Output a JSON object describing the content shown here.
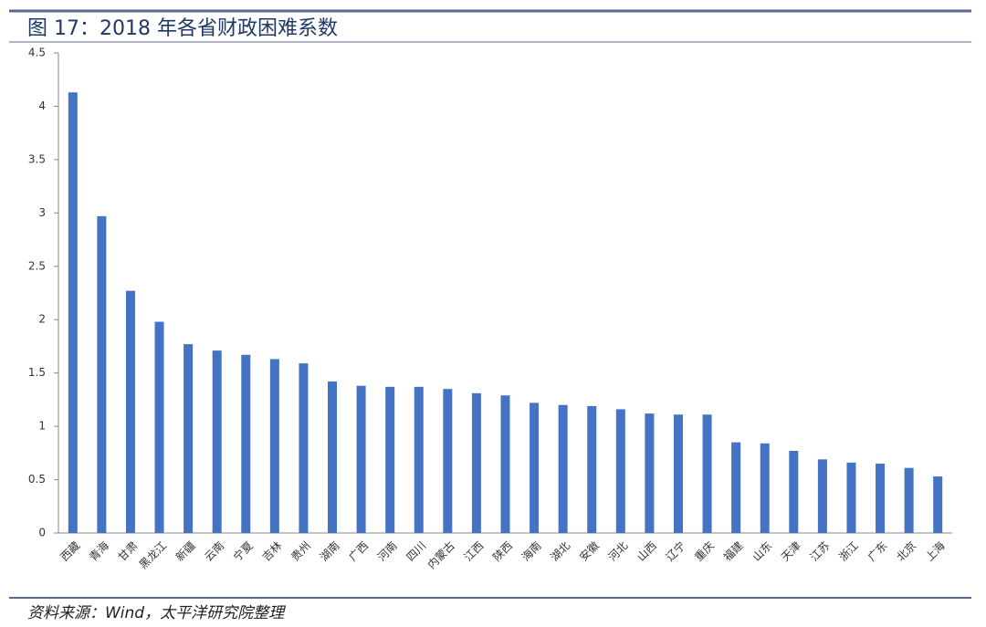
{
  "chart_data": {
    "type": "bar",
    "title": "图 17：2018 年各省财政困难系数",
    "source": "资料来源：Wind，太平洋研究院整理",
    "categories": [
      "西藏",
      "青海",
      "甘肃",
      "黑龙江",
      "新疆",
      "云南",
      "宁夏",
      "吉林",
      "贵州",
      "湖南",
      "广西",
      "河南",
      "四川",
      "内蒙古",
      "江西",
      "陕西",
      "海南",
      "湖北",
      "安徽",
      "河北",
      "山西",
      "辽宁",
      "重庆",
      "福建",
      "山东",
      "天津",
      "江苏",
      "浙江",
      "广东",
      "北京",
      "上海"
    ],
    "values": [
      4.13,
      2.97,
      2.27,
      1.98,
      1.77,
      1.71,
      1.67,
      1.63,
      1.59,
      1.42,
      1.38,
      1.37,
      1.37,
      1.35,
      1.31,
      1.29,
      1.22,
      1.2,
      1.19,
      1.16,
      1.12,
      1.11,
      1.11,
      0.85,
      0.84,
      0.77,
      0.69,
      0.66,
      0.65,
      0.61,
      0.53
    ],
    "color": "#4472c4",
    "ylim": [
      0,
      4.5
    ],
    "yticks": [
      0,
      0.5,
      1,
      1.5,
      2,
      2.5,
      3,
      3.5,
      4,
      4.5
    ]
  }
}
